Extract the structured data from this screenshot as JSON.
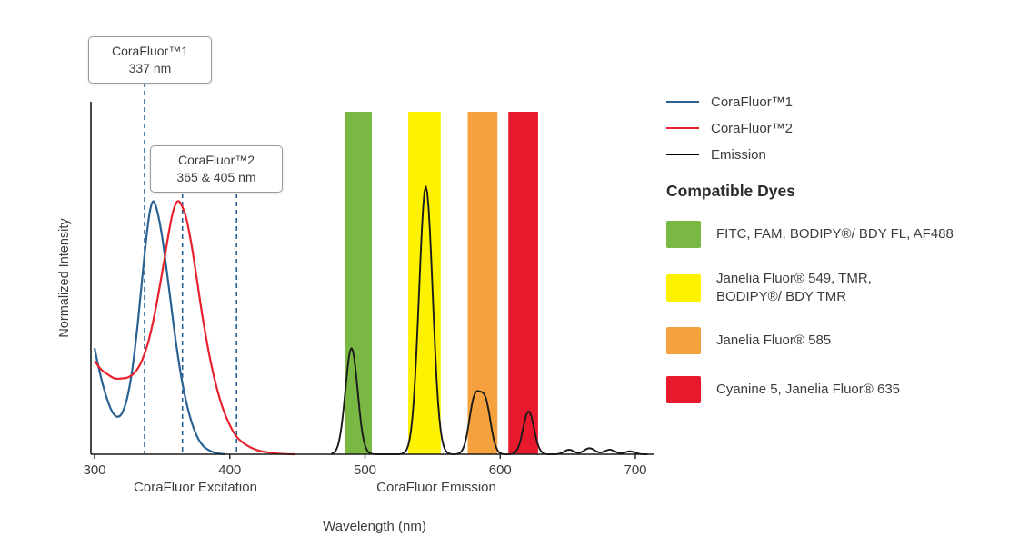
{
  "axes": {
    "y_label": "Normalized Intensity",
    "x_label": "Wavelength (nm)",
    "x_sublabel_excitation": "CoraFluor Excitation",
    "x_sublabel_emission": "CoraFluor Emission"
  },
  "callouts": [
    {
      "title": "CoraFluor™1",
      "value": "337 nm",
      "lines_nm": [
        337
      ]
    },
    {
      "title": "CoraFluor™2",
      "value": "365 & 405 nm",
      "lines_nm": [
        365,
        405
      ]
    }
  ],
  "legend": {
    "items": [
      {
        "label": "CoraFluor™1",
        "color": "#2a6293"
      },
      {
        "label": "CoraFluor™2",
        "color": "#e8222d"
      },
      {
        "label": "Emission",
        "color": "#000000"
      }
    ]
  },
  "compatible_dyes": {
    "heading": "Compatible Dyes",
    "items": [
      {
        "label": "FITC, FAM, BODIPY®/ BDY FL, AF488",
        "color": "#79b843"
      },
      {
        "label": "Janelia Fluor® 549, TMR,\nBODIPY®/ BDY TMR",
        "color": "#fef200"
      },
      {
        "label": "Janelia Fluor® 585",
        "color": "#f5a13d"
      },
      {
        "label": "Cyanine 5, Janelia Fluor® 635",
        "color": "#e8192c"
      }
    ]
  },
  "chart_data": {
    "type": "line",
    "title": "CoraFluor excitation and emission spectra with compatible dye filter bands",
    "xlabel": "Wavelength (nm)",
    "ylabel": "Normalized Intensity",
    "xlim": [
      300,
      710
    ],
    "ylim": [
      0,
      1.15
    ],
    "xticks": [
      300,
      400,
      500,
      600,
      700
    ],
    "grid": false,
    "legend_position": "right",
    "guide_lines_nm": [
      337,
      365,
      405
    ],
    "guide_color": "#2a6293",
    "filter_bands": [
      {
        "range_nm": [
          485,
          505
        ],
        "color": "#79b843",
        "dyes": "FITC, FAM, BODIPY®/ BDY FL, AF488"
      },
      {
        "range_nm": [
          532,
          556
        ],
        "color": "#fef200",
        "dyes": "Janelia Fluor® 549, TMR, BODIPY®/ BDY TMR"
      },
      {
        "range_nm": [
          576,
          598
        ],
        "color": "#f5a13d",
        "dyes": "Janelia Fluor® 585"
      },
      {
        "range_nm": [
          606,
          628
        ],
        "color": "#e8192c",
        "dyes": "Cyanine 5, Janelia Fluor® 635"
      }
    ],
    "series": [
      {
        "name": "CoraFluor™1 excitation",
        "color": "#2a6293",
        "points": [
          [
            300,
            0.42
          ],
          [
            304,
            0.32
          ],
          [
            308,
            0.24
          ],
          [
            312,
            0.18
          ],
          [
            316,
            0.15
          ],
          [
            320,
            0.16
          ],
          [
            324,
            0.22
          ],
          [
            328,
            0.34
          ],
          [
            332,
            0.52
          ],
          [
            336,
            0.74
          ],
          [
            340,
            0.93
          ],
          [
            343,
            1.0
          ],
          [
            346,
            0.97
          ],
          [
            350,
            0.86
          ],
          [
            355,
            0.66
          ],
          [
            360,
            0.45
          ],
          [
            365,
            0.28
          ],
          [
            370,
            0.16
          ],
          [
            375,
            0.08
          ],
          [
            380,
            0.035
          ],
          [
            385,
            0.015
          ],
          [
            390,
            0.005
          ],
          [
            396,
            0.0
          ]
        ]
      },
      {
        "name": "CoraFluor™2 excitation",
        "color": "#e8222d",
        "points": [
          [
            300,
            0.37
          ],
          [
            305,
            0.335
          ],
          [
            310,
            0.315
          ],
          [
            315,
            0.3
          ],
          [
            320,
            0.3
          ],
          [
            325,
            0.305
          ],
          [
            330,
            0.325
          ],
          [
            335,
            0.37
          ],
          [
            340,
            0.45
          ],
          [
            345,
            0.57
          ],
          [
            350,
            0.72
          ],
          [
            355,
            0.88
          ],
          [
            358,
            0.96
          ],
          [
            361,
            1.0
          ],
          [
            364,
            0.99
          ],
          [
            368,
            0.93
          ],
          [
            372,
            0.82
          ],
          [
            376,
            0.68
          ],
          [
            380,
            0.54
          ],
          [
            385,
            0.39
          ],
          [
            390,
            0.27
          ],
          [
            395,
            0.18
          ],
          [
            400,
            0.115
          ],
          [
            405,
            0.07
          ],
          [
            410,
            0.045
          ],
          [
            415,
            0.028
          ],
          [
            420,
            0.017
          ],
          [
            425,
            0.01
          ],
          [
            430,
            0.006
          ],
          [
            435,
            0.003
          ],
          [
            440,
            0.001
          ],
          [
            448,
            0.0
          ]
        ]
      },
      {
        "name": "Emission",
        "color": "#1a1a1a",
        "range_nm": [
          475,
          709
        ],
        "peaks": [
          {
            "center_nm": 490,
            "height": 0.42,
            "sigma_nm": 4.5
          },
          {
            "center_nm": 545,
            "height": 1.06,
            "sigma_nm": 5
          },
          {
            "center_nm": 581,
            "height": 0.21,
            "sigma_nm": 4
          },
          {
            "center_nm": 589,
            "height": 0.2,
            "sigma_nm": 4
          },
          {
            "center_nm": 621,
            "height": 0.17,
            "sigma_nm": 4
          },
          {
            "center_nm": 651,
            "height": 0.018,
            "sigma_nm": 3.5
          },
          {
            "center_nm": 666,
            "height": 0.024,
            "sigma_nm": 4
          },
          {
            "center_nm": 681,
            "height": 0.018,
            "sigma_nm": 4
          },
          {
            "center_nm": 696,
            "height": 0.012,
            "sigma_nm": 3.5
          }
        ]
      }
    ]
  }
}
